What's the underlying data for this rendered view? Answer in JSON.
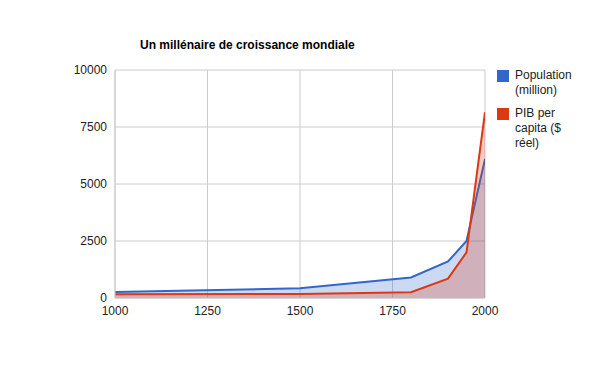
{
  "chart_data": {
    "type": "area",
    "title": "Un millénaire de croissance mondiale",
    "x": [
      1000,
      1500,
      1800,
      1900,
      1950,
      2000
    ],
    "series": [
      {
        "name": "Population (million)",
        "color": "#3366cc",
        "values": [
          265,
          425,
          900,
          1600,
          2500,
          6100
        ]
      },
      {
        "name": "PIB per capita ($ réel)",
        "color": "#dc3912",
        "values": [
          160,
          180,
          250,
          850,
          2000,
          8150
        ]
      }
    ],
    "xlim": [
      1000,
      2000
    ],
    "ylim": [
      0,
      10000
    ],
    "xticks": [
      1000,
      1250,
      1500,
      1750,
      2000
    ],
    "yticks": [
      0,
      2500,
      5000,
      7500,
      10000
    ],
    "grid": true,
    "legend": "right"
  }
}
